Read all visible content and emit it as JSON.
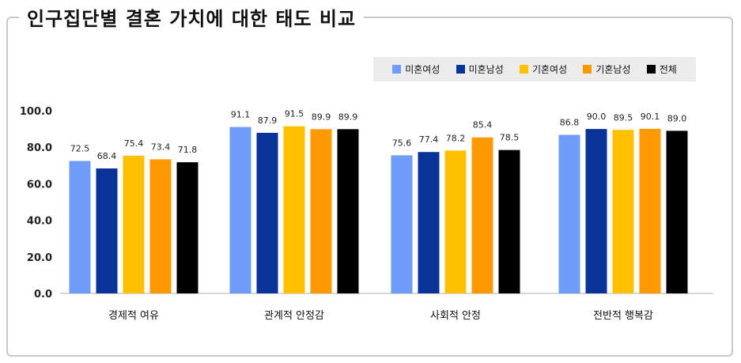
{
  "title": "인구집단별 결혼 가치에 대한 태도 비교",
  "colors": {
    "frame": "#c8c8c8",
    "legend_bg": "#ececec",
    "axis": "#bfbfbf"
  },
  "chart_data": {
    "type": "bar",
    "title": "인구집단별 결혼 가치에 대한 태도 비교",
    "categories": [
      "경제적 여유",
      "관계적 안정감",
      "사회적 안정",
      "전반적 행복감"
    ],
    "series": [
      {
        "name": "미혼여성",
        "color": "#6f9cf8",
        "values": [
          72.5,
          91.1,
          75.6,
          86.8
        ]
      },
      {
        "name": "미혼남성",
        "color": "#0a3399",
        "values": [
          68.4,
          87.9,
          77.4,
          90.0
        ]
      },
      {
        "name": "기혼여성",
        "color": "#ffc000",
        "values": [
          75.4,
          91.5,
          78.2,
          89.5
        ]
      },
      {
        "name": "기혼남성",
        "color": "#ff9900",
        "values": [
          73.4,
          89.9,
          85.4,
          90.1
        ]
      },
      {
        "name": "전체",
        "color": "#000000",
        "values": [
          71.8,
          89.9,
          78.5,
          89.0
        ]
      }
    ],
    "ylim": [
      0,
      100
    ],
    "yticks": [
      "0.0",
      "20.0",
      "40.0",
      "60.0",
      "80.0",
      "100.0"
    ],
    "ytick_values": [
      0,
      20,
      40,
      60,
      80,
      100
    ],
    "grid": false,
    "legend_position": "top-right",
    "xlabel": "",
    "ylabel": ""
  }
}
